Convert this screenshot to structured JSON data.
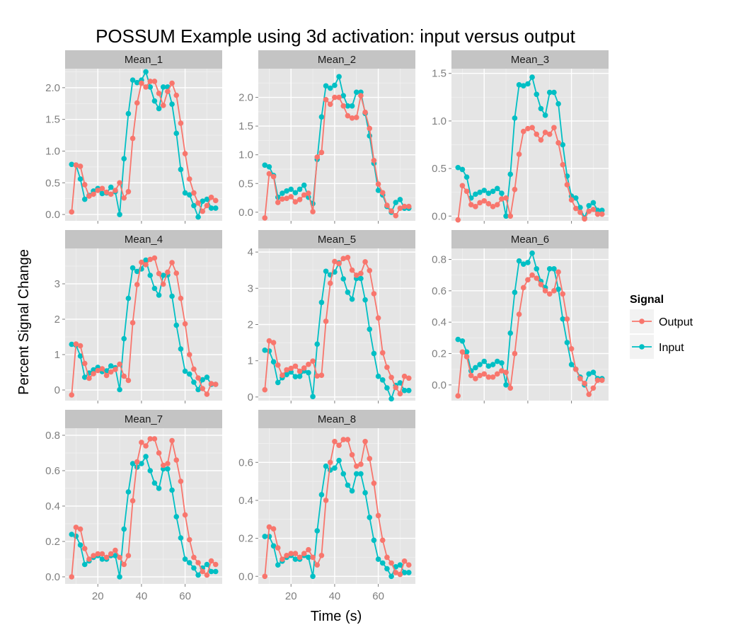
{
  "chart_data": {
    "type": "line",
    "title": "POSSUM Example using 3d activation: input versus output",
    "xlabel": "Time (s)",
    "ylabel": "Percent Signal Change",
    "x": [
      8,
      10,
      12,
      14,
      16,
      18,
      20,
      22,
      24,
      26,
      28,
      30,
      32,
      34,
      36,
      38,
      40,
      42,
      44,
      46,
      48,
      50,
      52,
      54,
      56,
      58,
      60,
      62,
      64,
      66,
      68,
      70,
      72,
      74
    ],
    "x_ticks": [
      20,
      40,
      60
    ],
    "legend": {
      "title": "Signal",
      "placement": "right",
      "entries": [
        {
          "name": "Output",
          "color": "#f8766d"
        },
        {
          "name": "Input",
          "color": "#00bfc4"
        }
      ]
    },
    "facets": [
      {
        "name": "Mean_1",
        "ylim": [
          -0.1,
          2.3
        ],
        "y_ticks": [
          0.0,
          0.5,
          1.0,
          1.5,
          2.0
        ],
        "y_tick_labels": [
          "0.0",
          "0.5",
          "1.0",
          "1.5",
          "2.0"
        ],
        "series": [
          {
            "name": "Output",
            "values": [
              0.04,
              0.78,
              0.76,
              0.47,
              0.29,
              0.32,
              0.38,
              0.41,
              0.35,
              0.32,
              0.38,
              0.5,
              0.26,
              0.36,
              1.2,
              1.76,
              2.07,
              2.01,
              2.1,
              2.1,
              1.91,
              1.72,
              1.94,
              2.07,
              1.88,
              1.44,
              0.96,
              0.56,
              0.34,
              0.18,
              0.05,
              0.14,
              0.27,
              0.22
            ]
          },
          {
            "name": "Input",
            "values": [
              0.79,
              0.78,
              0.56,
              0.24,
              0.3,
              0.37,
              0.41,
              0.33,
              0.34,
              0.43,
              0.36,
              0.0,
              0.88,
              1.59,
              2.12,
              2.08,
              2.12,
              2.25,
              2.01,
              1.79,
              1.67,
              2.01,
              2.01,
              1.74,
              1.28,
              0.71,
              0.34,
              0.31,
              0.14,
              -0.04,
              0.21,
              0.24,
              0.1,
              0.1
            ]
          }
        ]
      },
      {
        "name": "Mean_2",
        "ylim": [
          -0.15,
          2.5
        ],
        "y_ticks": [
          0.0,
          0.5,
          1.0,
          1.5,
          2.0
        ],
        "y_tick_labels": [
          "0.0",
          "0.5",
          "1.0",
          "1.5",
          "2.0"
        ],
        "series": [
          {
            "name": "Output",
            "values": [
              -0.1,
              0.67,
              0.62,
              0.17,
              0.23,
              0.24,
              0.27,
              0.18,
              0.22,
              0.3,
              0.33,
              0.01,
              0.96,
              1.04,
              1.96,
              1.88,
              2.0,
              2.0,
              1.85,
              1.68,
              1.64,
              1.65,
              2.03,
              1.74,
              1.46,
              0.9,
              0.49,
              0.34,
              0.12,
              0.02,
              -0.06,
              0.07,
              0.1,
              0.1
            ]
          },
          {
            "name": "Input",
            "values": [
              0.82,
              0.79,
              0.64,
              0.26,
              0.33,
              0.37,
              0.4,
              0.34,
              0.4,
              0.47,
              0.26,
              0.15,
              0.92,
              1.66,
              2.2,
              2.16,
              2.21,
              2.36,
              2.03,
              1.85,
              1.85,
              2.09,
              2.09,
              1.72,
              1.33,
              0.85,
              0.38,
              0.3,
              0.1,
              0.0,
              0.17,
              0.22,
              0.07,
              0.07
            ]
          }
        ]
      },
      {
        "name": "Mean_3",
        "ylim": [
          -0.05,
          1.55
        ],
        "y_ticks": [
          0.0,
          0.5,
          1.0,
          1.5
        ],
        "y_tick_labels": [
          "0.0",
          "0.5",
          "1.0",
          "1.5"
        ],
        "series": [
          {
            "name": "Output",
            "values": [
              -0.04,
              0.32,
              0.26,
              0.12,
              0.1,
              0.14,
              0.16,
              0.13,
              0.1,
              0.12,
              0.18,
              0.19,
              0.0,
              0.28,
              0.65,
              0.89,
              0.92,
              0.93,
              0.86,
              0.8,
              0.88,
              0.86,
              0.93,
              0.77,
              0.54,
              0.33,
              0.17,
              0.08,
              0.04,
              -0.03,
              0.05,
              0.07,
              0.02,
              0.02
            ]
          },
          {
            "name": "Input",
            "values": [
              0.51,
              0.49,
              0.41,
              0.19,
              0.23,
              0.25,
              0.27,
              0.24,
              0.26,
              0.29,
              0.24,
              0.0,
              0.44,
              1.03,
              1.38,
              1.37,
              1.39,
              1.46,
              1.28,
              1.13,
              1.06,
              1.3,
              1.3,
              1.18,
              0.75,
              0.42,
              0.21,
              0.19,
              0.09,
              -0.02,
              0.11,
              0.14,
              0.06,
              0.06
            ]
          }
        ]
      },
      {
        "name": "Mean_4",
        "ylim": [
          -0.3,
          4.0
        ],
        "y_ticks": [
          0,
          1,
          2,
          3
        ],
        "y_tick_labels": [
          "0",
          "1",
          "2",
          "3"
        ],
        "series": [
          {
            "name": "Output",
            "values": [
              -0.14,
              1.3,
              1.25,
              0.75,
              0.33,
              0.46,
              0.55,
              0.6,
              0.41,
              0.51,
              0.58,
              0.73,
              0.39,
              0.27,
              1.9,
              2.98,
              3.61,
              3.54,
              3.69,
              3.73,
              3.29,
              2.99,
              3.33,
              3.6,
              3.3,
              2.59,
              1.87,
              1.0,
              0.59,
              0.34,
              0.04,
              -0.12,
              0.18,
              0.16
            ]
          },
          {
            "name": "Input",
            "values": [
              1.29,
              1.27,
              0.96,
              0.36,
              0.48,
              0.57,
              0.64,
              0.52,
              0.54,
              0.68,
              0.63,
              0.01,
              1.45,
              2.59,
              3.45,
              3.35,
              3.42,
              3.67,
              3.24,
              2.87,
              2.68,
              3.24,
              3.25,
              2.65,
              1.83,
              1.16,
              0.53,
              0.45,
              0.22,
              0.01,
              0.29,
              0.36,
              0.16,
              0.16
            ]
          }
        ]
      },
      {
        "name": "Mean_5",
        "ylim": [
          -0.1,
          4.1
        ],
        "y_ticks": [
          0,
          1,
          2,
          3,
          4
        ],
        "y_tick_labels": [
          "0",
          "1",
          "2",
          "3",
          "4"
        ],
        "series": [
          {
            "name": "Output",
            "values": [
              0.2,
              1.55,
              1.5,
              0.88,
              0.6,
              0.75,
              0.79,
              0.85,
              0.71,
              0.8,
              0.9,
              0.99,
              0.58,
              0.6,
              2.09,
              3.14,
              3.74,
              3.68,
              3.82,
              3.85,
              3.5,
              3.36,
              3.41,
              3.73,
              3.49,
              2.85,
              2.18,
              1.22,
              0.82,
              0.54,
              0.26,
              0.09,
              0.57,
              0.52
            ]
          },
          {
            "name": "Input",
            "values": [
              1.29,
              1.27,
              0.97,
              0.4,
              0.53,
              0.62,
              0.69,
              0.56,
              0.57,
              0.72,
              0.67,
              0.01,
              1.46,
              2.61,
              3.47,
              3.37,
              3.45,
              3.7,
              3.26,
              2.89,
              2.7,
              3.27,
              3.27,
              2.68,
              1.87,
              1.2,
              0.57,
              0.47,
              0.25,
              -0.05,
              0.32,
              0.39,
              0.18,
              0.18
            ]
          }
        ]
      },
      {
        "name": "Mean_6",
        "ylim": [
          -0.1,
          0.87
        ],
        "y_ticks": [
          0.0,
          0.2,
          0.4,
          0.6,
          0.8
        ],
        "y_tick_labels": [
          "0.0",
          "0.2",
          "0.4",
          "0.6",
          "0.8"
        ],
        "series": [
          {
            "name": "Output",
            "values": [
              -0.07,
              0.21,
              0.18,
              0.06,
              0.04,
              0.06,
              0.07,
              0.05,
              0.05,
              0.07,
              0.09,
              0.08,
              -0.02,
              0.2,
              0.45,
              0.62,
              0.67,
              0.7,
              0.68,
              0.64,
              0.6,
              0.58,
              0.6,
              0.72,
              0.58,
              0.42,
              0.23,
              0.1,
              0.04,
              0.01,
              -0.06,
              -0.02,
              0.03,
              0.03
            ]
          },
          {
            "name": "Input",
            "values": [
              0.29,
              0.28,
              0.21,
              0.09,
              0.11,
              0.13,
              0.15,
              0.12,
              0.13,
              0.15,
              0.14,
              0.0,
              0.33,
              0.59,
              0.79,
              0.77,
              0.78,
              0.84,
              0.74,
              0.66,
              0.62,
              0.74,
              0.74,
              0.61,
              0.42,
              0.27,
              0.13,
              0.1,
              0.05,
              0.0,
              0.07,
              0.08,
              0.04,
              0.04
            ]
          }
        ]
      },
      {
        "name": "Mean_7",
        "ylim": [
          -0.04,
          0.84
        ],
        "y_ticks": [
          0.0,
          0.2,
          0.4,
          0.6,
          0.8
        ],
        "y_tick_labels": [
          "0.0",
          "0.2",
          "0.4",
          "0.6",
          "0.8"
        ],
        "series": [
          {
            "name": "Output",
            "values": [
              0.0,
              0.28,
              0.27,
              0.16,
              0.1,
              0.12,
              0.13,
              0.13,
              0.11,
              0.13,
              0.15,
              0.11,
              0.07,
              0.12,
              0.43,
              0.65,
              0.76,
              0.74,
              0.78,
              0.78,
              0.7,
              0.63,
              0.64,
              0.77,
              0.66,
              0.54,
              0.35,
              0.21,
              0.11,
              0.08,
              0.03,
              0.01,
              0.09,
              0.07
            ]
          },
          {
            "name": "Input",
            "values": [
              0.24,
              0.23,
              0.18,
              0.07,
              0.09,
              0.11,
              0.12,
              0.1,
              0.1,
              0.12,
              0.12,
              0.0,
              0.27,
              0.48,
              0.64,
              0.62,
              0.64,
              0.68,
              0.6,
              0.53,
              0.5,
              0.61,
              0.61,
              0.49,
              0.34,
              0.22,
              0.1,
              0.08,
              0.05,
              0.01,
              0.05,
              0.07,
              0.03,
              0.03
            ]
          }
        ]
      },
      {
        "name": "Mean_8",
        "ylim": [
          -0.04,
          0.78
        ],
        "y_ticks": [
          0.0,
          0.2,
          0.4,
          0.6
        ],
        "y_tick_labels": [
          "0.0",
          "0.2",
          "0.4",
          "0.6"
        ],
        "series": [
          {
            "name": "Output",
            "values": [
              0.0,
              0.26,
              0.25,
              0.15,
              0.09,
              0.11,
              0.12,
              0.12,
              0.1,
              0.12,
              0.14,
              0.1,
              0.06,
              0.11,
              0.4,
              0.6,
              0.71,
              0.69,
              0.72,
              0.72,
              0.64,
              0.58,
              0.59,
              0.71,
              0.62,
              0.49,
              0.32,
              0.19,
              0.1,
              0.07,
              0.02,
              0.01,
              0.08,
              0.06
            ]
          },
          {
            "name": "Input",
            "values": [
              0.21,
              0.21,
              0.16,
              0.06,
              0.08,
              0.1,
              0.11,
              0.09,
              0.09,
              0.11,
              0.1,
              0.0,
              0.24,
              0.43,
              0.58,
              0.56,
              0.57,
              0.61,
              0.54,
              0.48,
              0.45,
              0.54,
              0.54,
              0.44,
              0.31,
              0.19,
              0.09,
              0.07,
              0.04,
              0.0,
              0.05,
              0.06,
              0.02,
              0.02
            ]
          }
        ]
      }
    ]
  }
}
